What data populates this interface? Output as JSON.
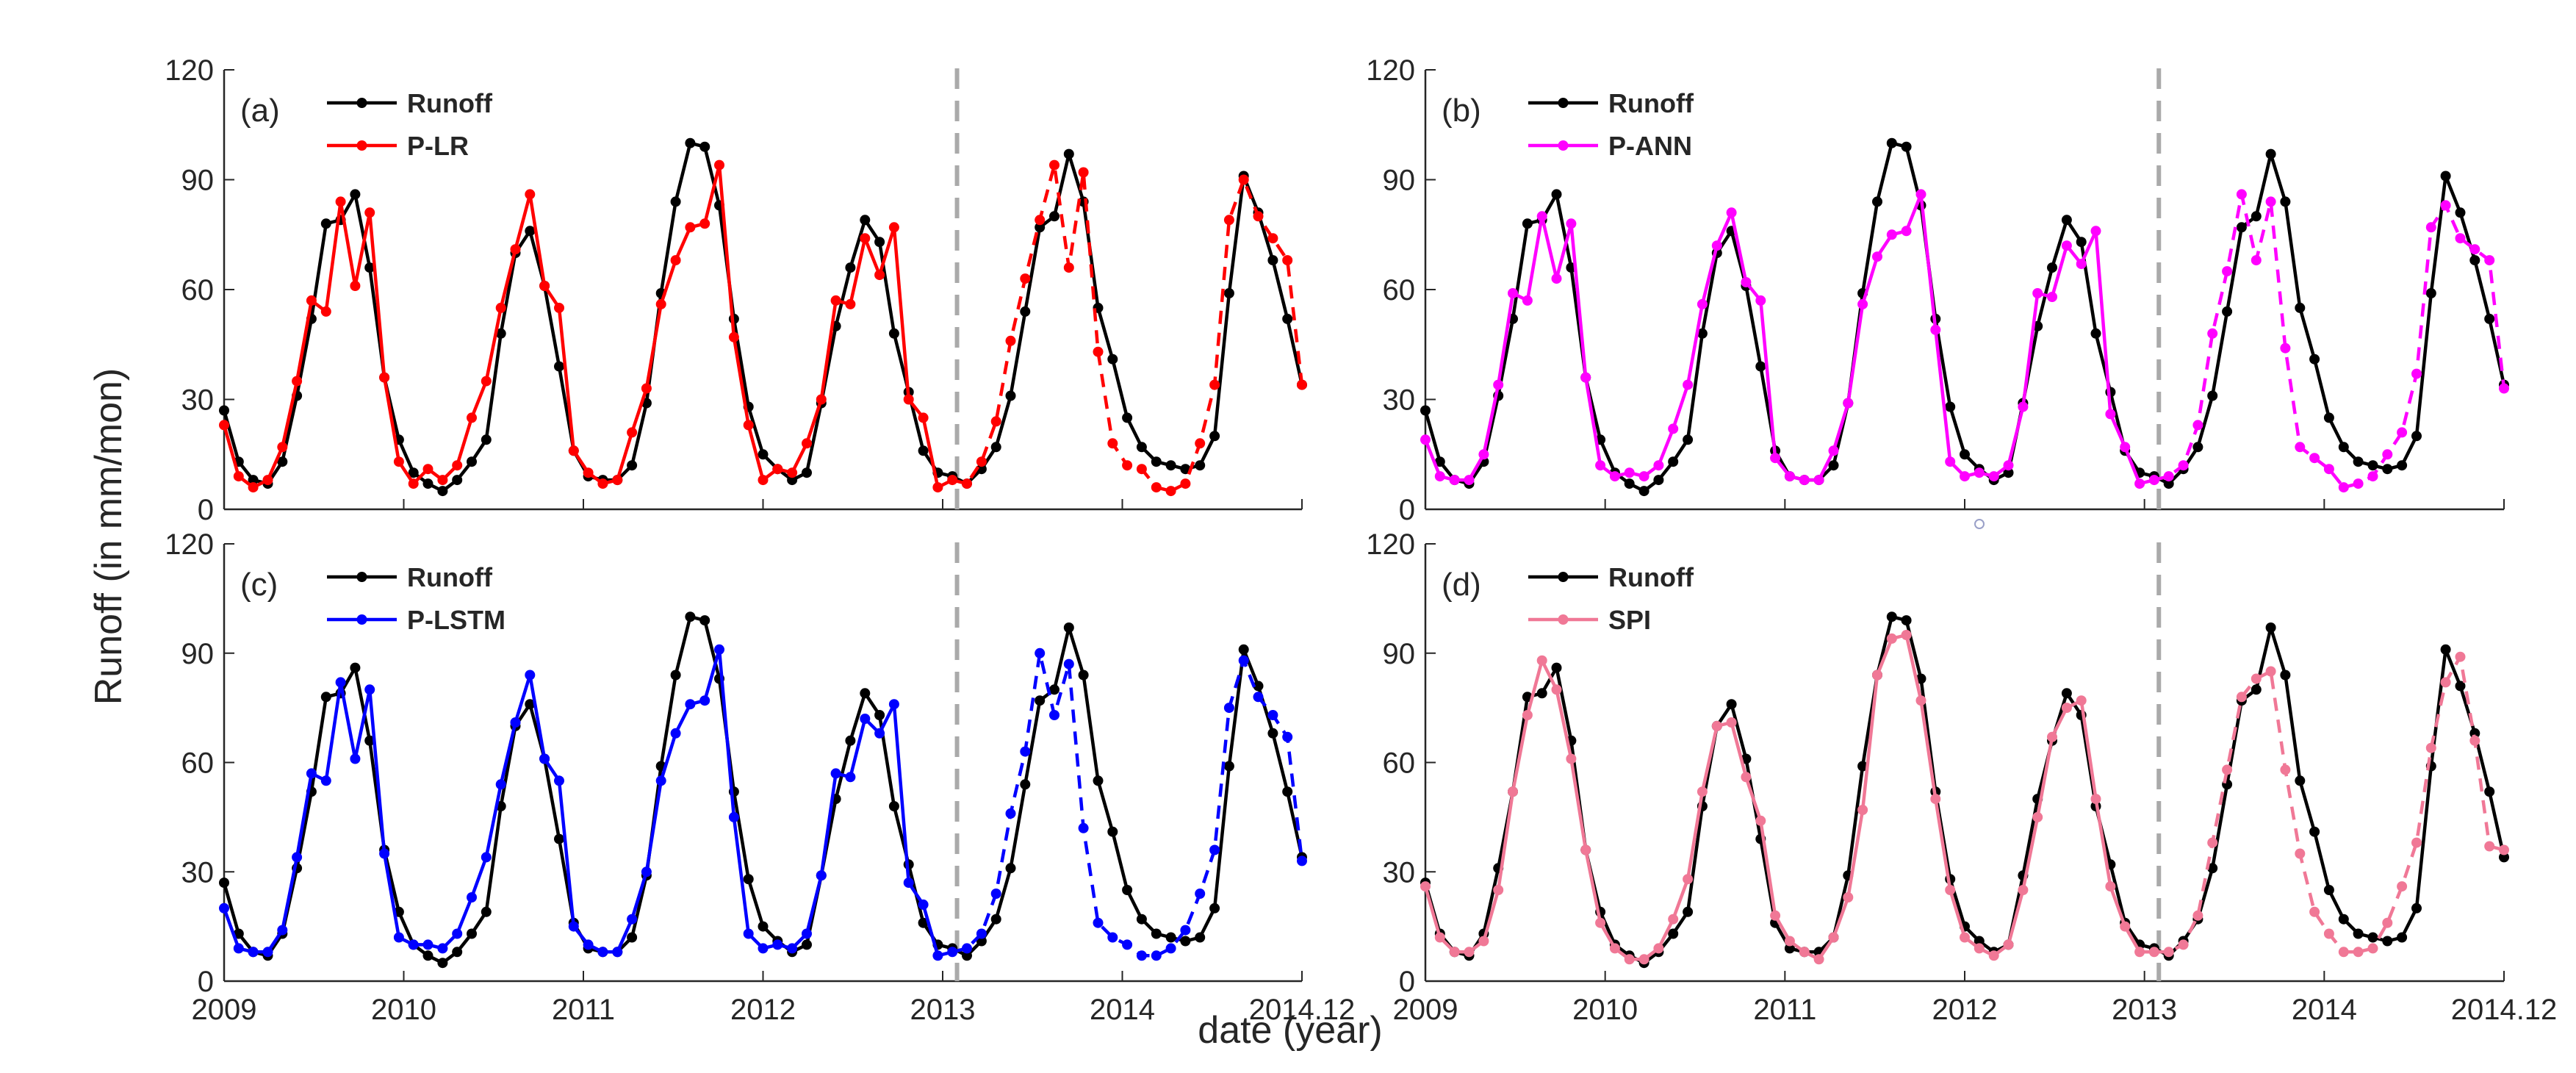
{
  "figure": {
    "ylabel": "Runoff (in mm/mon)",
    "xlabel": "date (year)"
  },
  "chart_data": [
    {
      "type": "line",
      "panel_label": "(a)",
      "ylim": [
        0,
        120
      ],
      "yticks": [
        0,
        30,
        60,
        90,
        120
      ],
      "xlim": [
        2009.0,
        2015.0
      ],
      "xticks": [
        2009,
        2010,
        2011,
        2012,
        2013,
        2014,
        2015
      ],
      "xtick_labels": [
        "2009",
        "2010",
        "2011",
        "2012",
        "2013",
        "2014",
        "2014.12"
      ],
      "split_x": 2013.08,
      "legend_position": "top-left",
      "series": [
        {
          "name": "Runoff",
          "color": "#000000",
          "values": [
            27,
            13,
            8,
            7,
            13,
            31,
            52,
            78,
            79,
            86,
            66,
            36,
            19,
            10,
            7,
            5,
            8,
            13,
            19,
            48,
            70,
            76,
            61,
            39,
            16,
            9,
            8,
            8,
            12,
            29,
            59,
            84,
            100,
            99,
            83,
            52,
            28,
            15,
            11,
            8,
            10,
            29,
            50,
            66,
            79,
            73,
            48,
            32,
            16,
            10,
            9,
            7,
            11,
            17,
            31,
            54,
            77,
            80,
            97,
            84,
            55,
            41,
            25,
            17,
            13,
            12,
            11,
            12,
            20,
            59,
            91,
            81,
            68,
            52,
            34
          ]
        },
        {
          "name": "P-LR",
          "color": "#ff0000",
          "values": [
            23,
            9,
            6,
            8,
            17,
            35,
            57,
            54,
            84,
            61,
            81,
            36,
            13,
            7,
            11,
            8,
            12,
            25,
            35,
            55,
            71,
            86,
            61,
            55,
            16,
            10,
            7,
            8,
            21,
            33,
            56,
            68,
            77,
            78,
            94,
            47,
            23,
            8,
            11,
            10,
            18,
            30,
            57,
            56,
            74,
            64,
            77,
            30,
            25,
            6,
            8,
            7,
            13,
            24,
            46,
            63,
            79,
            94,
            66,
            92,
            43,
            18,
            12,
            11,
            6,
            5,
            7,
            18,
            34,
            79,
            90,
            80,
            74,
            68,
            34
          ]
        }
      ]
    },
    {
      "type": "line",
      "panel_label": "(b)",
      "ylim": [
        0,
        120
      ],
      "yticks": [
        0,
        30,
        60,
        90,
        120
      ],
      "xlim": [
        2009.0,
        2015.0
      ],
      "xticks": [
        2009,
        2010,
        2011,
        2012,
        2013,
        2014,
        2015
      ],
      "xtick_labels": [
        "2009",
        "2010",
        "2011",
        "2012",
        "2013",
        "2014",
        "2014.12"
      ],
      "split_x": 2013.08,
      "legend_position": "top-left",
      "series": [
        {
          "name": "Runoff",
          "color": "#000000",
          "values": [
            27,
            13,
            8,
            7,
            13,
            31,
            52,
            78,
            79,
            86,
            66,
            36,
            19,
            10,
            7,
            5,
            8,
            13,
            19,
            48,
            70,
            76,
            61,
            39,
            16,
            9,
            8,
            8,
            12,
            29,
            59,
            84,
            100,
            99,
            83,
            52,
            28,
            15,
            11,
            8,
            10,
            29,
            50,
            66,
            79,
            73,
            48,
            32,
            16,
            10,
            9,
            7,
            11,
            17,
            31,
            54,
            77,
            80,
            97,
            84,
            55,
            41,
            25,
            17,
            13,
            12,
            11,
            12,
            20,
            59,
            91,
            81,
            68,
            52,
            34
          ]
        },
        {
          "name": "P-ANN",
          "color": "#ff00ff",
          "values": [
            19,
            9,
            8,
            8,
            15,
            34,
            59,
            57,
            80,
            63,
            78,
            36,
            12,
            9,
            10,
            9,
            12,
            22,
            34,
            56,
            72,
            81,
            62,
            57,
            14,
            9,
            8,
            8,
            16,
            29,
            56,
            69,
            75,
            76,
            86,
            49,
            13,
            9,
            10,
            9,
            12,
            28,
            59,
            58,
            72,
            67,
            76,
            26,
            17,
            7,
            8,
            9,
            12,
            23,
            48,
            65,
            86,
            68,
            84,
            44,
            17,
            14,
            11,
            6,
            7,
            9,
            15,
            21,
            37,
            77,
            83,
            74,
            71,
            68,
            33
          ]
        }
      ]
    },
    {
      "type": "line",
      "panel_label": "(c)",
      "ylim": [
        0,
        120
      ],
      "yticks": [
        0,
        30,
        60,
        90,
        120
      ],
      "xlim": [
        2009.0,
        2015.0
      ],
      "xticks": [
        2009,
        2010,
        2011,
        2012,
        2013,
        2014,
        2015
      ],
      "xtick_labels": [
        "2009",
        "2010",
        "2011",
        "2012",
        "2013",
        "2014",
        "2014.12"
      ],
      "split_x": 2013.08,
      "legend_position": "top-left",
      "series": [
        {
          "name": "Runoff",
          "color": "#000000",
          "values": [
            27,
            13,
            8,
            7,
            13,
            31,
            52,
            78,
            79,
            86,
            66,
            36,
            19,
            10,
            7,
            5,
            8,
            13,
            19,
            48,
            70,
            76,
            61,
            39,
            16,
            9,
            8,
            8,
            12,
            29,
            59,
            84,
            100,
            99,
            83,
            52,
            28,
            15,
            11,
            8,
            10,
            29,
            50,
            66,
            79,
            73,
            48,
            32,
            16,
            10,
            9,
            7,
            11,
            17,
            31,
            54,
            77,
            80,
            97,
            84,
            55,
            41,
            25,
            17,
            13,
            12,
            11,
            12,
            20,
            59,
            91,
            81,
            68,
            52,
            34
          ]
        },
        {
          "name": "P-LSTM",
          "color": "#0000ff",
          "values": [
            20,
            9,
            8,
            8,
            14,
            34,
            57,
            55,
            82,
            61,
            80,
            35,
            12,
            10,
            10,
            9,
            13,
            23,
            34,
            54,
            71,
            84,
            61,
            55,
            15,
            10,
            8,
            8,
            17,
            30,
            55,
            68,
            76,
            77,
            91,
            45,
            13,
            9,
            10,
            9,
            13,
            29,
            57,
            56,
            72,
            68,
            76,
            27,
            21,
            7,
            8,
            9,
            13,
            24,
            46,
            63,
            90,
            73,
            87,
            42,
            16,
            12,
            10,
            7,
            7,
            9,
            14,
            24,
            36,
            75,
            88,
            78,
            73,
            67,
            33
          ]
        }
      ]
    },
    {
      "type": "line",
      "panel_label": "(d)",
      "ylim": [
        0,
        120
      ],
      "yticks": [
        0,
        30,
        60,
        90,
        120
      ],
      "xlim": [
        2009.0,
        2015.0
      ],
      "xticks": [
        2009,
        2010,
        2011,
        2012,
        2013,
        2014,
        2015
      ],
      "xtick_labels": [
        "2009",
        "2010",
        "2011",
        "2012",
        "2013",
        "2014",
        "2014.12"
      ],
      "split_x": 2013.08,
      "legend_position": "top-left",
      "series": [
        {
          "name": "Runoff",
          "color": "#000000",
          "values": [
            27,
            13,
            8,
            7,
            13,
            31,
            52,
            78,
            79,
            86,
            66,
            36,
            19,
            10,
            7,
            5,
            8,
            13,
            19,
            48,
            70,
            76,
            61,
            39,
            16,
            9,
            8,
            8,
            12,
            29,
            59,
            84,
            100,
            99,
            83,
            52,
            28,
            15,
            11,
            8,
            10,
            29,
            50,
            66,
            79,
            73,
            48,
            32,
            16,
            10,
            9,
            7,
            11,
            17,
            31,
            54,
            77,
            80,
            97,
            84,
            55,
            41,
            25,
            17,
            13,
            12,
            11,
            12,
            20,
            59,
            91,
            81,
            68,
            52,
            34
          ]
        },
        {
          "name": "SPI",
          "color": "#f07896",
          "values": [
            26,
            12,
            8,
            8,
            11,
            25,
            52,
            73,
            88,
            80,
            61,
            36,
            16,
            9,
            6,
            6,
            9,
            17,
            28,
            52,
            70,
            71,
            56,
            44,
            18,
            11,
            8,
            6,
            12,
            23,
            47,
            84,
            94,
            95,
            77,
            50,
            25,
            12,
            9,
            7,
            10,
            25,
            45,
            67,
            75,
            77,
            50,
            26,
            15,
            8,
            8,
            8,
            10,
            18,
            38,
            58,
            78,
            83,
            85,
            58,
            35,
            19,
            13,
            8,
            8,
            9,
            16,
            26,
            38,
            64,
            82,
            89,
            66,
            37,
            36
          ]
        }
      ]
    }
  ]
}
